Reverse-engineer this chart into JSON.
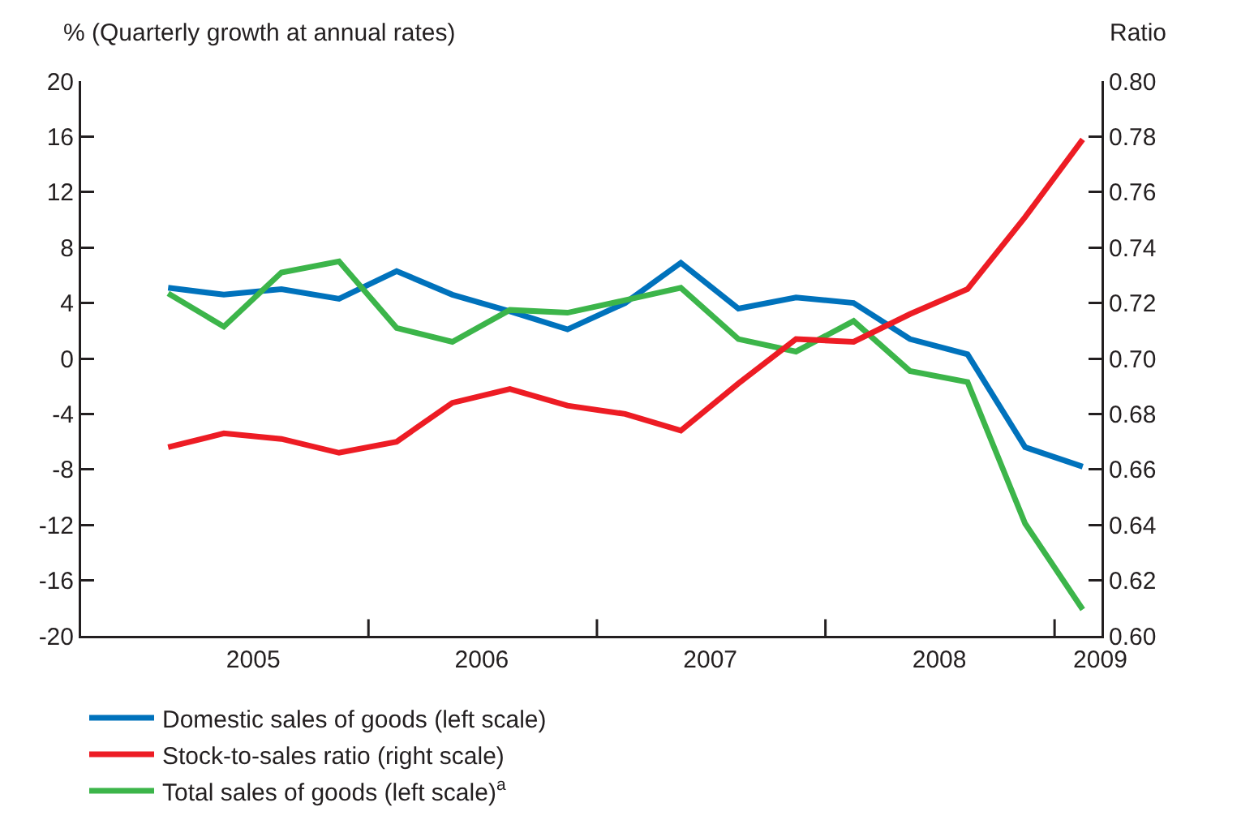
{
  "chart_data": {
    "type": "line",
    "ylabel": "% (Quarterly growth at annual rates)",
    "y2label": "Ratio",
    "x": [
      "2005-02-15",
      "2005-05-15",
      "2005-08-15",
      "2005-11-15",
      "2006-02-15",
      "2006-05-15",
      "2006-08-15",
      "2006-11-15",
      "2007-02-15",
      "2007-05-15",
      "2007-08-15",
      "2007-11-15",
      "2008-02-15",
      "2008-05-15",
      "2008-08-15",
      "2008-11-15",
      "2009-02-15"
    ],
    "series": [
      {
        "name": "Domestic sales of goods (left scale)",
        "color": "#0072bc",
        "values": [
          5.1,
          4.6,
          5.0,
          4.3,
          6.3,
          4.6,
          3.4,
          2.1,
          4.0,
          6.9,
          3.6,
          4.4,
          4.0,
          1.4,
          0.3,
          -6.4,
          -7.8
        ]
      },
      {
        "name": "Stock-to-sales ratio (right scale)",
        "color": "#ed1c24",
        "axis": "y2",
        "values": [
          0.668,
          0.673,
          0.671,
          0.666,
          0.67,
          0.684,
          0.689,
          0.683,
          0.68,
          0.674,
          0.691,
          0.707,
          0.706,
          0.716,
          0.725,
          0.751,
          0.779
        ]
      },
      {
        "name": "Total sales of goods (left scale)$^{a}$",
        "color": "#3cb54a",
        "values": [
          4.7,
          2.3,
          6.2,
          7.0,
          2.2,
          1.2,
          3.5,
          3.3,
          4.2,
          5.1,
          1.4,
          0.5,
          2.7,
          -0.9,
          -1.7,
          -11.9,
          -18.1
        ]
      }
    ],
    "xlim": [
      "2004-09-29",
      "2009-03-17"
    ],
    "xticks": [
      {
        "value": "2005-07-01",
        "label": "2005"
      },
      {
        "value": "2006-01-01",
        "label": null
      },
      {
        "value": "2006-07-01",
        "label": "2006"
      },
      {
        "value": "2007-01-01",
        "label": null
      },
      {
        "value": "2007-07-01",
        "label": "2007"
      },
      {
        "value": "2008-01-01",
        "label": null
      },
      {
        "value": "2008-07-01",
        "label": "2008"
      },
      {
        "value": "2009-01-01",
        "label": null
      },
      {
        "value": "2009-03-15",
        "label": "2009"
      }
    ],
    "ylim": [
      -20,
      20
    ],
    "yticks": [
      -20,
      -16,
      -12,
      -8,
      -4,
      0,
      4,
      8,
      12,
      16,
      20
    ],
    "y2lim": [
      0.6,
      0.8
    ],
    "y2ticks": [
      {
        "value": 0.6,
        "label": "0.60"
      },
      {
        "value": 0.62,
        "label": "0.62"
      },
      {
        "value": 0.64,
        "label": "0.64"
      },
      {
        "value": 0.66,
        "label": "0.66"
      },
      {
        "value": 0.68,
        "label": "0.68"
      },
      {
        "value": 0.7,
        "label": "0.70"
      },
      {
        "value": 0.72,
        "label": "0.72"
      },
      {
        "value": 0.74,
        "label": "0.74"
      },
      {
        "value": 0.76,
        "label": "0.76"
      },
      {
        "value": 0.78,
        "label": "0.78"
      },
      {
        "value": 0.8,
        "label": "0.80"
      }
    ],
    "grid": false,
    "legend": "bottom",
    "marker": "none",
    "line_style": "solid"
  }
}
